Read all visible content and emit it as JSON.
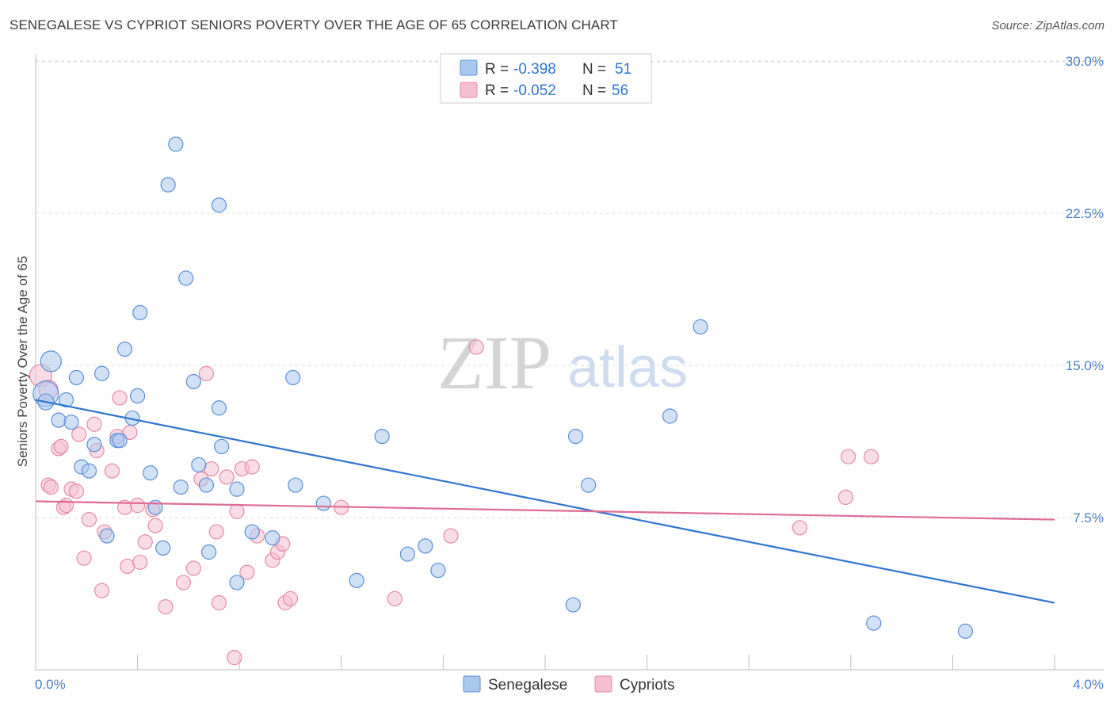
{
  "title": "SENEGALESE VS CYPRIOT SENIORS POVERTY OVER THE AGE OF 65 CORRELATION CHART",
  "source": "Source: ZipAtlas.com",
  "watermark": {
    "part1": "ZIP",
    "part2": "atlas"
  },
  "colors": {
    "senegalese_fill": "#a9c8ef",
    "senegalese_stroke": "#5b8fd6",
    "senegalese_line": "#2f74d0",
    "cypriot_fill": "#f6bfd1",
    "cypriot_stroke": "#e58aa8",
    "cypriot_line": "#e06b97",
    "tick_text": "#4a7fc8",
    "grid": "#dddddd"
  },
  "legend": {
    "row1": {
      "r_label": "R =",
      "r_value": "-0.398",
      "n_label": "N =",
      "n_value": "51"
    },
    "row2": {
      "r_label": "R =",
      "r_value": "-0.052",
      "n_label": "N =",
      "n_value": "56"
    }
  },
  "chart_data": {
    "type": "scatter",
    "title": "SENEGALESE VS CYPRIOT SENIORS POVERTY OVER THE AGE OF 65 CORRELATION CHART",
    "xlabel": "",
    "ylabel": "Seniors Poverty Over the Age of 65",
    "xlim": [
      0,
      4.2
    ],
    "ylim": [
      0,
      30.75
    ],
    "x_tick_labels": [
      "0.0%",
      "4.0%"
    ],
    "y_ticks": [
      7.5,
      15.0,
      22.5,
      30.0
    ],
    "y_tick_labels": [
      "7.5%",
      "15.0%",
      "22.5%",
      "30.0%"
    ],
    "legend_position": "bottom-center",
    "series": [
      {
        "name": "Senegalese",
        "r": -0.398,
        "n": 51,
        "trend": {
          "x0": 0.0,
          "y0": 13.3,
          "x1": 4.0,
          "y1": 3.3
        },
        "points": [
          {
            "x": 0.06,
            "y": 15.2,
            "s": 13
          },
          {
            "x": 0.04,
            "y": 13.6,
            "s": 16
          },
          {
            "x": 0.04,
            "y": 13.2,
            "s": 10
          },
          {
            "x": 0.09,
            "y": 12.3
          },
          {
            "x": 0.14,
            "y": 12.2
          },
          {
            "x": 0.16,
            "y": 14.4
          },
          {
            "x": 0.12,
            "y": 13.3
          },
          {
            "x": 0.26,
            "y": 14.6
          },
          {
            "x": 0.35,
            "y": 15.8
          },
          {
            "x": 0.41,
            "y": 17.6
          },
          {
            "x": 0.4,
            "y": 13.5
          },
          {
            "x": 0.38,
            "y": 12.4
          },
          {
            "x": 0.32,
            "y": 11.3
          },
          {
            "x": 0.33,
            "y": 11.3
          },
          {
            "x": 0.23,
            "y": 11.1
          },
          {
            "x": 0.18,
            "y": 10.0
          },
          {
            "x": 0.21,
            "y": 9.8
          },
          {
            "x": 0.45,
            "y": 9.7
          },
          {
            "x": 0.47,
            "y": 8.0
          },
          {
            "x": 0.52,
            "y": 23.9
          },
          {
            "x": 0.55,
            "y": 25.9
          },
          {
            "x": 0.59,
            "y": 19.3
          },
          {
            "x": 0.62,
            "y": 14.2
          },
          {
            "x": 0.72,
            "y": 22.9
          },
          {
            "x": 0.72,
            "y": 12.9
          },
          {
            "x": 0.73,
            "y": 11.0
          },
          {
            "x": 0.64,
            "y": 10.1
          },
          {
            "x": 0.67,
            "y": 9.1
          },
          {
            "x": 0.57,
            "y": 9.0
          },
          {
            "x": 0.28,
            "y": 6.6
          },
          {
            "x": 0.5,
            "y": 6.0
          },
          {
            "x": 0.68,
            "y": 5.8
          },
          {
            "x": 0.79,
            "y": 8.9
          },
          {
            "x": 0.85,
            "y": 6.8
          },
          {
            "x": 0.93,
            "y": 6.5
          },
          {
            "x": 1.01,
            "y": 14.4
          },
          {
            "x": 1.02,
            "y": 9.1
          },
          {
            "x": 1.13,
            "y": 8.2
          },
          {
            "x": 0.79,
            "y": 4.3
          },
          {
            "x": 1.26,
            "y": 4.4
          },
          {
            "x": 1.36,
            "y": 11.5
          },
          {
            "x": 1.46,
            "y": 5.7
          },
          {
            "x": 1.53,
            "y": 6.1
          },
          {
            "x": 1.58,
            "y": 4.9
          },
          {
            "x": 2.12,
            "y": 11.5
          },
          {
            "x": 2.17,
            "y": 9.1
          },
          {
            "x": 2.11,
            "y": 3.2
          },
          {
            "x": 2.49,
            "y": 12.5
          },
          {
            "x": 2.61,
            "y": 16.9
          },
          {
            "x": 3.29,
            "y": 2.3
          },
          {
            "x": 3.65,
            "y": 1.9
          }
        ]
      },
      {
        "name": "Cypriots",
        "r": -0.052,
        "n": 56,
        "trend": {
          "x0": 0.0,
          "y0": 8.3,
          "x1": 4.0,
          "y1": 7.4
        },
        "points": [
          {
            "x": 0.02,
            "y": 14.5,
            "s": 14
          },
          {
            "x": 0.05,
            "y": 13.8,
            "s": 12
          },
          {
            "x": 0.05,
            "y": 9.1
          },
          {
            "x": 0.06,
            "y": 9.0
          },
          {
            "x": 0.09,
            "y": 10.9
          },
          {
            "x": 0.1,
            "y": 11.0
          },
          {
            "x": 0.11,
            "y": 8.0
          },
          {
            "x": 0.12,
            "y": 8.1
          },
          {
            "x": 0.14,
            "y": 8.9
          },
          {
            "x": 0.16,
            "y": 8.8
          },
          {
            "x": 0.17,
            "y": 11.6
          },
          {
            "x": 0.23,
            "y": 12.1
          },
          {
            "x": 0.24,
            "y": 10.8
          },
          {
            "x": 0.21,
            "y": 7.4
          },
          {
            "x": 0.19,
            "y": 5.5
          },
          {
            "x": 0.26,
            "y": 3.9
          },
          {
            "x": 0.27,
            "y": 6.8
          },
          {
            "x": 0.3,
            "y": 9.8
          },
          {
            "x": 0.32,
            "y": 11.5
          },
          {
            "x": 0.33,
            "y": 13.4
          },
          {
            "x": 0.35,
            "y": 8.0
          },
          {
            "x": 0.36,
            "y": 5.1
          },
          {
            "x": 0.37,
            "y": 11.7
          },
          {
            "x": 0.4,
            "y": 8.1
          },
          {
            "x": 0.41,
            "y": 5.3
          },
          {
            "x": 0.43,
            "y": 6.3
          },
          {
            "x": 0.46,
            "y": 7.9
          },
          {
            "x": 0.47,
            "y": 7.1
          },
          {
            "x": 0.51,
            "y": 3.1
          },
          {
            "x": 0.58,
            "y": 4.3
          },
          {
            "x": 0.62,
            "y": 5.0
          },
          {
            "x": 0.65,
            "y": 9.4
          },
          {
            "x": 0.67,
            "y": 14.6
          },
          {
            "x": 0.69,
            "y": 9.9
          },
          {
            "x": 0.71,
            "y": 6.8
          },
          {
            "x": 0.72,
            "y": 3.3
          },
          {
            "x": 0.75,
            "y": 9.5
          },
          {
            "x": 0.79,
            "y": 7.8
          },
          {
            "x": 0.81,
            "y": 9.9
          },
          {
            "x": 0.83,
            "y": 4.8
          },
          {
            "x": 0.85,
            "y": 10.0
          },
          {
            "x": 0.87,
            "y": 6.6
          },
          {
            "x": 0.78,
            "y": 0.6
          },
          {
            "x": 0.93,
            "y": 5.4
          },
          {
            "x": 0.95,
            "y": 5.8
          },
          {
            "x": 0.97,
            "y": 6.2
          },
          {
            "x": 0.98,
            "y": 3.3
          },
          {
            "x": 1.0,
            "y": 3.5
          },
          {
            "x": 1.2,
            "y": 8.0
          },
          {
            "x": 1.41,
            "y": 3.5
          },
          {
            "x": 1.63,
            "y": 6.6
          },
          {
            "x": 1.73,
            "y": 15.9
          },
          {
            "x": 3.0,
            "y": 7.0
          },
          {
            "x": 3.18,
            "y": 8.5
          },
          {
            "x": 3.19,
            "y": 10.5
          },
          {
            "x": 3.28,
            "y": 10.5
          }
        ]
      }
    ]
  }
}
